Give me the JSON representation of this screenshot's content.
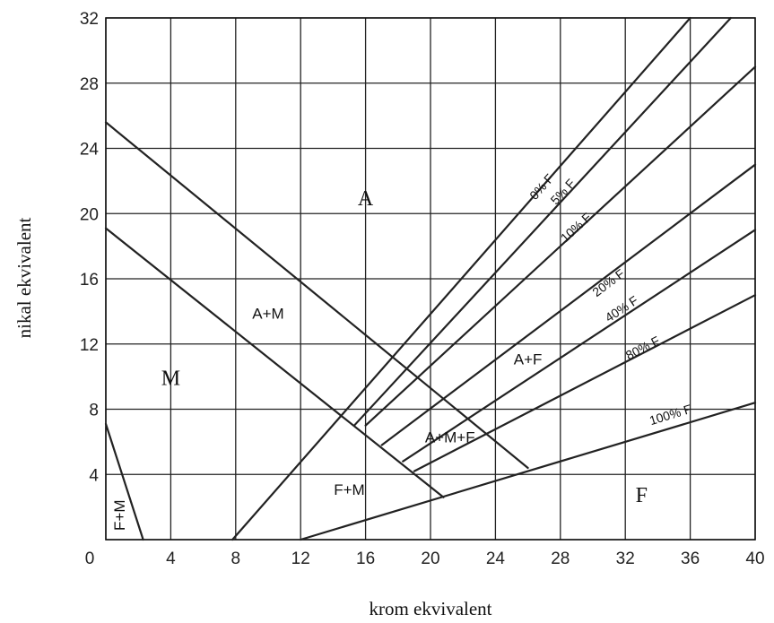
{
  "chart_data": {
    "type": "line",
    "xlabel": "krom ekvivalent",
    "ylabel": "nikal ekvivalent",
    "xlim": [
      0,
      40
    ],
    "ylim": [
      0,
      32
    ],
    "x_ticks": [
      0,
      4,
      8,
      12,
      16,
      20,
      24,
      28,
      32,
      36,
      40
    ],
    "y_ticks": [
      4,
      8,
      12,
      16,
      20,
      24,
      28,
      32
    ],
    "grid": true,
    "lines": [
      {
        "name": "0% F",
        "points": [
          [
            7.8,
            0
          ],
          [
            36,
            32
          ]
        ]
      },
      {
        "name": "5% F",
        "points": [
          [
            15.3,
            7
          ],
          [
            38.5,
            32
          ]
        ]
      },
      {
        "name": "10% F",
        "points": [
          [
            16,
            7
          ],
          [
            40,
            29
          ]
        ]
      },
      {
        "name": "20% F",
        "points": [
          [
            17,
            5.8
          ],
          [
            40,
            23
          ]
        ]
      },
      {
        "name": "40% F",
        "points": [
          [
            18.3,
            4.8
          ],
          [
            40,
            19
          ]
        ]
      },
      {
        "name": "80% F",
        "points": [
          [
            19,
            4.2
          ],
          [
            40,
            15
          ]
        ]
      },
      {
        "name": "100% F",
        "points": [
          [
            12,
            0
          ],
          [
            40,
            8.4
          ]
        ]
      },
      {
        "name": "A/A+M",
        "points": [
          [
            0,
            25.6
          ],
          [
            26,
            4.4
          ]
        ]
      },
      {
        "name": "A+M/M",
        "points": [
          [
            0,
            19.1
          ],
          [
            20.8,
            2.6
          ]
        ]
      },
      {
        "name": "F+M",
        "points": [
          [
            0,
            7.1
          ],
          [
            2.3,
            0
          ]
        ]
      }
    ],
    "regions": [
      {
        "label": "A",
        "x": 16,
        "y": 20.8
      },
      {
        "label": "A+M",
        "x": 10,
        "y": 13.8
      },
      {
        "label": "M",
        "x": 4,
        "y": 9.8
      },
      {
        "label": "A+F",
        "x": 26,
        "y": 11
      },
      {
        "label": "A+M+F",
        "x": 21.2,
        "y": 6.2
      },
      {
        "label": "F+M",
        "x": 15,
        "y": 3
      },
      {
        "label": "F",
        "x": 33,
        "y": 2.6
      },
      {
        "label": "F+M",
        "x": 0.9,
        "y": 1.5
      }
    ],
    "isoline_labels": [
      {
        "text": "0% F",
        "x": 26.9,
        "y": 21.6
      },
      {
        "text": "5% F",
        "x": 28.2,
        "y": 21.3
      },
      {
        "text": "10% F",
        "x": 29,
        "y": 19.1
      },
      {
        "text": "20% F",
        "x": 31,
        "y": 15.7
      },
      {
        "text": "40% F",
        "x": 31.8,
        "y": 14.1
      },
      {
        "text": "80% F",
        "x": 33.1,
        "y": 11.7
      },
      {
        "text": "100% F",
        "x": 34.8,
        "y": 7.6
      }
    ]
  }
}
